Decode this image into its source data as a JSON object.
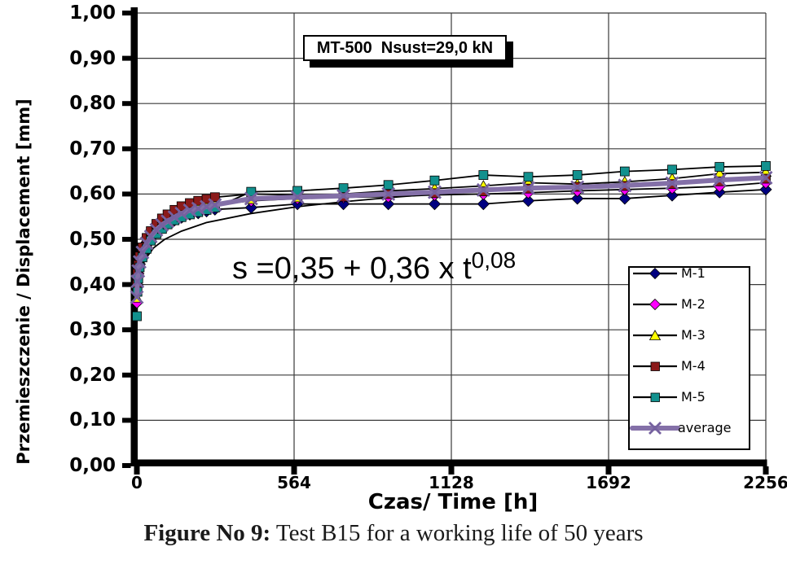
{
  "caption": {
    "label": "Figure No 9:",
    "text": " Test B15 for a working life of 50 years"
  },
  "chart_data": {
    "type": "line",
    "title": "MT-500  Nsust=29,0 kN",
    "xlabel": "Czas/ Time [h]",
    "ylabel": "Przemieszczenie / Displacement [mm]",
    "annotation": {
      "base": "s =0,35 + 0,36 x t",
      "sup": "0,08"
    },
    "xlim": [
      0,
      2256
    ],
    "ylim": [
      0.0,
      1.0
    ],
    "x_ticks": [
      0,
      564,
      1128,
      1692,
      2256
    ],
    "y_ticks": [
      0.0,
      0.1,
      0.2,
      0.3,
      0.4,
      0.5,
      0.6,
      0.7,
      0.8,
      0.9,
      1.0
    ],
    "y_tick_labels": [
      "0,00",
      "0,10",
      "0,20",
      "0,30",
      "0,40",
      "0,50",
      "0,60",
      "0,70",
      "0,80",
      "0,90",
      "1,00"
    ],
    "grid": true,
    "legend_position": "inside-right",
    "x": [
      0,
      2,
      5,
      10,
      20,
      35,
      50,
      70,
      90,
      110,
      135,
      160,
      190,
      220,
      250,
      280,
      410,
      576,
      741,
      902,
      1068,
      1243,
      1404,
      1580,
      1750,
      1920,
      2090,
      2256
    ],
    "series": [
      {
        "name": "M-1",
        "color": "#000080",
        "marker": "diamond",
        "values": [
          0.4,
          0.422,
          0.44,
          0.456,
          0.475,
          0.493,
          0.505,
          0.518,
          0.527,
          0.534,
          0.542,
          0.548,
          0.555,
          0.558,
          0.562,
          0.566,
          0.57,
          0.578,
          0.578,
          0.578,
          0.578,
          0.578,
          0.585,
          0.59,
          0.59,
          0.597,
          0.604,
          0.61
        ]
      },
      {
        "name": "M-2",
        "color": "#FF00FF",
        "marker": "diamond",
        "values": [
          0.36,
          0.399,
          0.424,
          0.445,
          0.467,
          0.488,
          0.503,
          0.519,
          0.531,
          0.538,
          0.548,
          0.556,
          0.563,
          0.568,
          0.572,
          0.576,
          0.585,
          0.59,
          0.593,
          0.594,
          0.598,
          0.6,
          0.603,
          0.607,
          0.61,
          0.613,
          0.617,
          0.625
        ]
      },
      {
        "name": "M-3",
        "color": "#FFFF00",
        "marker": "triangle",
        "values": [
          0.37,
          0.405,
          0.429,
          0.449,
          0.471,
          0.492,
          0.506,
          0.521,
          0.533,
          0.541,
          0.55,
          0.557,
          0.565,
          0.569,
          0.573,
          0.576,
          0.588,
          0.592,
          0.6,
          0.607,
          0.612,
          0.618,
          0.625,
          0.622,
          0.627,
          0.634,
          0.645,
          0.648
        ]
      },
      {
        "name": "M-4",
        "color": "#8B1A1A",
        "marker": "square",
        "values": [
          0.4,
          0.425,
          0.444,
          0.462,
          0.482,
          0.503,
          0.518,
          0.534,
          0.546,
          0.555,
          0.565,
          0.573,
          0.58,
          0.585,
          0.589,
          0.593,
          0.6,
          0.598,
          0.594,
          0.6,
          0.602,
          0.606,
          0.612,
          0.616,
          0.618,
          0.622,
          0.628,
          0.634
        ]
      },
      {
        "name": "M-5",
        "color": "#12918E",
        "marker": "square",
        "values": [
          0.33,
          0.384,
          0.413,
          0.438,
          0.46,
          0.479,
          0.497,
          0.512,
          0.523,
          0.533,
          0.542,
          0.549,
          0.555,
          0.56,
          0.565,
          0.57,
          0.605,
          0.607,
          0.613,
          0.62,
          0.63,
          0.642,
          0.638,
          0.642,
          0.65,
          0.654,
          0.66,
          0.662
        ]
      },
      {
        "name": "average",
        "color": "#8470A8",
        "marker": "x",
        "thick": true,
        "values": [
          0.372,
          0.407,
          0.43,
          0.45,
          0.471,
          0.491,
          0.506,
          0.521,
          0.532,
          0.54,
          0.549,
          0.557,
          0.564,
          0.568,
          0.572,
          0.576,
          0.59,
          0.593,
          0.596,
          0.6,
          0.604,
          0.609,
          0.613,
          0.615,
          0.619,
          0.624,
          0.631,
          0.636
        ]
      }
    ],
    "trend_line": {
      "color": "#000000",
      "x": [
        0.01,
        0.05,
        0.2,
        0.5,
        1,
        2,
        4,
        8,
        16,
        30,
        60,
        100,
        160,
        250,
        410,
        576,
        741,
        902,
        1068,
        1243,
        1404,
        1580,
        1750,
        1920,
        2090,
        2256
      ],
      "values": [
        0.247,
        0.279,
        0.31,
        0.333,
        0.351,
        0.37,
        0.39,
        0.412,
        0.434,
        0.456,
        0.481,
        0.5,
        0.518,
        0.537,
        0.557,
        0.572,
        0.583,
        0.592,
        0.6,
        0.607,
        0.612,
        0.618,
        0.623,
        0.627,
        0.631,
        0.635
      ]
    }
  }
}
